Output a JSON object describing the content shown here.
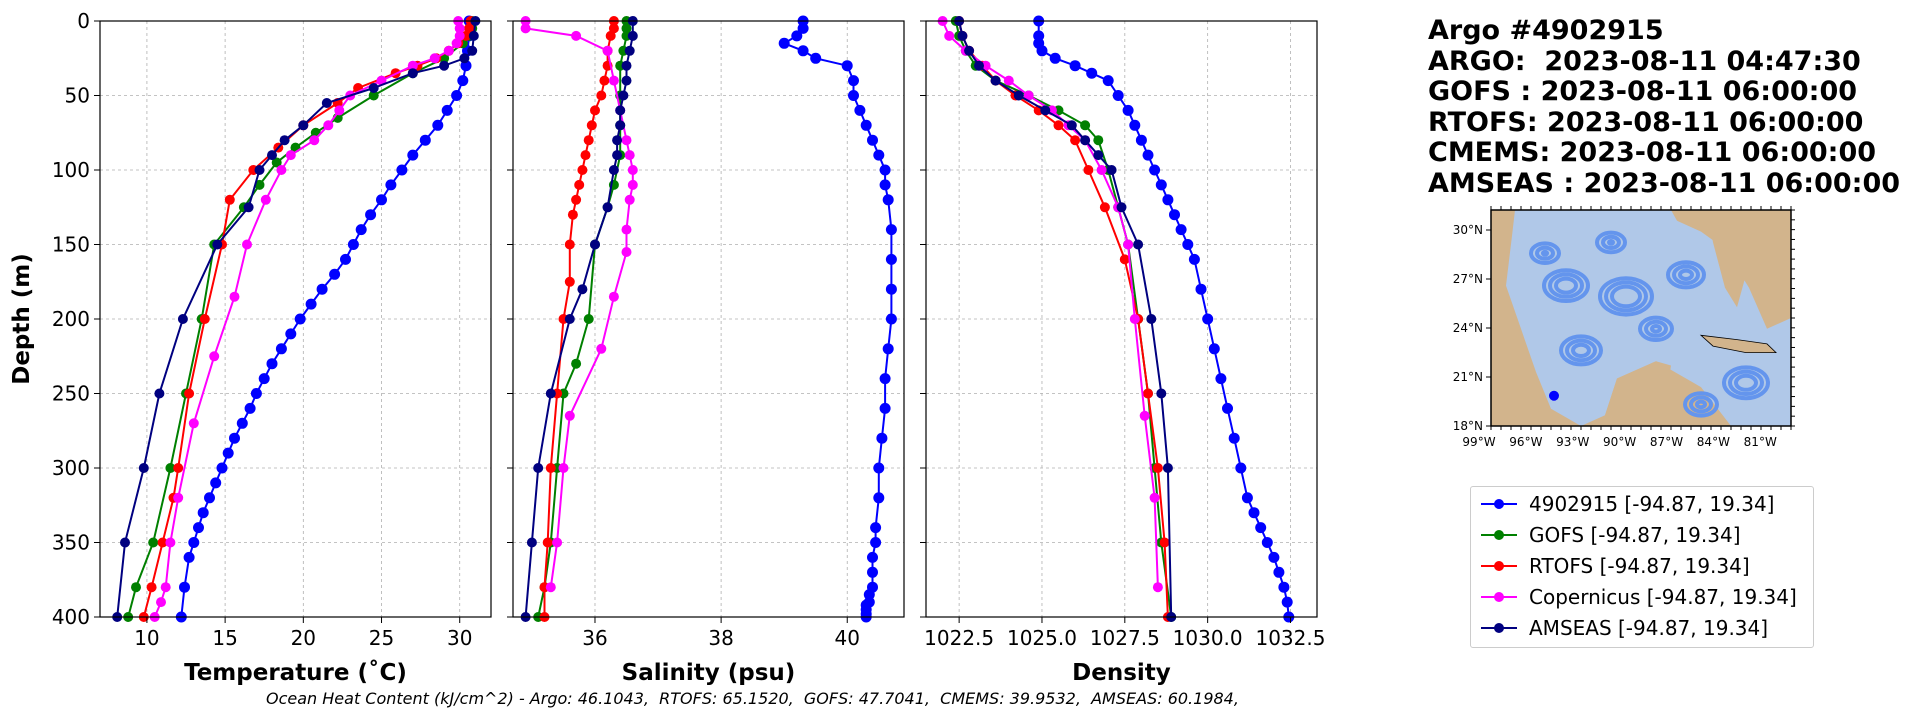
{
  "title_lines": [
    "Argo #4902915",
    "ARGO:  2023-08-11 04:47:30",
    "GOFS : 2023-08-11 06:00:00",
    "RTOFS: 2023-08-11 06:00:00",
    "CMEMS: 2023-08-11 06:00:00",
    "AMSEAS : 2023-08-11 06:00:00"
  ],
  "footer": "Ocean Heat Content (kJ/cm^2) - Argo: 46.1043,  RTOFS: 65.1520,  GOFS: 47.7041,  CMEMS: 39.9532,  AMSEAS: 60.1984,",
  "legend": [
    {
      "label": "4902915 [-94.87, 19.34]",
      "color": "#0000ff"
    },
    {
      "label": "GOFS [-94.87, 19.34]",
      "color": "#008000"
    },
    {
      "label": "RTOFS [-94.87, 19.34]",
      "color": "#ff0000"
    },
    {
      "label": "Copernicus [-94.87, 19.34]",
      "color": "#ff00ff"
    },
    {
      "label": "AMSEAS [-94.87, 19.34]",
      "color": "#000080"
    }
  ],
  "map": {
    "lat_labels": [
      "30°N",
      "27°N",
      "24°N",
      "21°N",
      "18°N"
    ],
    "lon_labels": [
      "99°W",
      "96°W",
      "93°W",
      "90°W",
      "87°W",
      "84°W",
      "81°W"
    ],
    "land_color": "#d2b48c",
    "ocean_color": "#b0c8e8",
    "current_color": "#6495ed"
  },
  "chart_data": [
    {
      "type": "line",
      "ylabel": "Depth (m)",
      "xlabel": "Temperature (˚C)",
      "xlim": [
        7,
        32
      ],
      "ylim": [
        400,
        0
      ],
      "grid": true,
      "xticks": [
        10,
        15,
        20,
        25,
        30
      ],
      "yticks": [
        0,
        50,
        100,
        150,
        200,
        250,
        300,
        350,
        400
      ],
      "series": [
        {
          "name": "4902915",
          "color": "#0000ff",
          "marker_size": 9,
          "continuous": true,
          "x": [
            30.6,
            30.6,
            30.5,
            30.4,
            30.2,
            29.8,
            29.2,
            28.6,
            27.8,
            27.0,
            26.3,
            25.6,
            25.0,
            24.3,
            23.7,
            23.2,
            22.7,
            22.0,
            21.2,
            20.5,
            19.8,
            19.2,
            18.6,
            18.0,
            17.5,
            17.0,
            16.6,
            16.1,
            15.6,
            15.2,
            14.8,
            14.4,
            14.0,
            13.6,
            13.3,
            13.0,
            12.7,
            12.4,
            12.2
          ],
          "y": [
            0,
            10,
            20,
            30,
            40,
            50,
            60,
            70,
            80,
            90,
            100,
            110,
            120,
            130,
            140,
            150,
            160,
            170,
            180,
            190,
            200,
            210,
            220,
            230,
            240,
            250,
            260,
            270,
            280,
            290,
            300,
            310,
            320,
            330,
            340,
            350,
            360,
            380,
            400
          ]
        },
        {
          "name": "GOFS",
          "color": "#008000",
          "x": [
            30.8,
            30.8,
            30.6,
            30.2,
            29.0,
            27.0,
            24.5,
            22.2,
            20.8,
            19.5,
            18.3,
            17.2,
            16.2,
            14.3,
            13.5,
            12.5,
            11.5,
            10.4,
            9.3,
            8.8
          ],
          "y": [
            0,
            5,
            10,
            15,
            25,
            35,
            50,
            65,
            75,
            85,
            95,
            110,
            125,
            150,
            200,
            250,
            300,
            350,
            380,
            400
          ]
        },
        {
          "name": "RTOFS",
          "color": "#ff0000",
          "x": [
            30.7,
            30.6,
            30.4,
            29.9,
            29.3,
            28.5,
            27.3,
            25.9,
            23.5,
            22.2,
            20.0,
            18.4,
            16.8,
            15.3,
            14.8,
            13.7,
            12.7,
            12.0,
            11.7,
            11.0,
            10.3,
            9.8
          ],
          "y": [
            0,
            5,
            10,
            15,
            20,
            25,
            30,
            35,
            45,
            55,
            70,
            85,
            100,
            120,
            150,
            200,
            250,
            300,
            320,
            350,
            380,
            400
          ]
        },
        {
          "name": "Copernicus",
          "color": "#ff00ff",
          "x": [
            29.9,
            30.0,
            30.0,
            29.8,
            29.3,
            28.4,
            27.0,
            25.0,
            23.0,
            22.3,
            21.6,
            20.7,
            19.2,
            18.6,
            17.6,
            16.4,
            15.6,
            14.3,
            13.0,
            12.0,
            11.5,
            11.2,
            10.9,
            10.5
          ],
          "y": [
            0,
            5,
            10,
            15,
            20,
            25,
            30,
            40,
            50,
            60,
            70,
            80,
            90,
            100,
            120,
            150,
            185,
            225,
            270,
            320,
            350,
            380,
            390,
            400
          ]
        },
        {
          "name": "AMSEAS",
          "color": "#000080",
          "x": [
            31.0,
            30.9,
            30.8,
            30.3,
            29.0,
            27.0,
            24.5,
            21.5,
            20.0,
            18.8,
            18.0,
            17.2,
            16.5,
            14.5,
            12.3,
            10.8,
            9.8,
            8.6,
            8.1
          ],
          "y": [
            0,
            10,
            20,
            25,
            30,
            35,
            45,
            55,
            70,
            80,
            90,
            100,
            125,
            150,
            200,
            250,
            300,
            350,
            400
          ]
        }
      ]
    },
    {
      "type": "line",
      "xlabel": "Salinity (psu)",
      "xlim": [
        34.7,
        40.9
      ],
      "ylim": [
        400,
        0
      ],
      "grid": true,
      "xticks": [
        36,
        38,
        40
      ],
      "yticks": [
        0,
        50,
        100,
        150,
        200,
        250,
        300,
        350,
        400
      ],
      "series": [
        {
          "name": "4902915",
          "color": "#0000ff",
          "marker_size": 9,
          "continuous": true,
          "x": [
            39.3,
            39.3,
            39.2,
            39.0,
            39.3,
            39.5,
            40.0,
            40.1,
            40.1,
            40.2,
            40.3,
            40.4,
            40.5,
            40.6,
            40.6,
            40.65,
            40.7,
            40.7,
            40.7,
            40.7,
            40.65,
            40.6,
            40.6,
            40.55,
            40.5,
            40.5,
            40.45,
            40.45,
            40.4,
            40.4,
            40.4,
            40.35,
            40.35,
            40.3,
            40.3,
            40.3,
            40.3
          ],
          "y": [
            0,
            5,
            10,
            15,
            20,
            25,
            30,
            40,
            50,
            60,
            70,
            80,
            90,
            100,
            110,
            120,
            140,
            160,
            180,
            200,
            220,
            240,
            260,
            280,
            300,
            320,
            340,
            350,
            360,
            370,
            380,
            385,
            390,
            392,
            395,
            398,
            400
          ]
        },
        {
          "name": "GOFS",
          "color": "#008000",
          "x": [
            36.5,
            36.5,
            36.5,
            36.45,
            36.4,
            36.4,
            36.4,
            36.4,
            36.3,
            36.2,
            36.0,
            35.9,
            35.7,
            35.5,
            35.4,
            35.3,
            35.2,
            35.1
          ],
          "y": [
            0,
            5,
            10,
            20,
            30,
            50,
            70,
            90,
            110,
            125,
            150,
            200,
            230,
            250,
            300,
            350,
            380,
            400
          ]
        },
        {
          "name": "RTOFS",
          "color": "#ff0000",
          "x": [
            36.3,
            36.3,
            36.25,
            36.2,
            36.2,
            36.15,
            36.1,
            36.0,
            35.95,
            35.9,
            35.85,
            35.8,
            35.75,
            35.7,
            35.65,
            35.6,
            35.6,
            35.5,
            35.4,
            35.3,
            35.25,
            35.2,
            35.2
          ],
          "y": [
            0,
            5,
            10,
            20,
            30,
            40,
            50,
            60,
            70,
            80,
            90,
            100,
            110,
            120,
            130,
            150,
            175,
            200,
            250,
            300,
            350,
            380,
            400
          ]
        },
        {
          "name": "Copernicus",
          "color": "#ff00ff",
          "x": [
            34.9,
            34.9,
            35.7,
            36.2,
            36.3,
            36.4,
            36.5,
            36.55,
            36.6,
            36.6,
            36.55,
            36.5,
            36.5,
            36.3,
            36.1,
            35.6,
            35.5,
            35.4,
            35.3
          ],
          "y": [
            0,
            5,
            10,
            20,
            40,
            60,
            80,
            90,
            100,
            110,
            120,
            140,
            155,
            185,
            220,
            265,
            300,
            350,
            380
          ]
        },
        {
          "name": "AMSEAS",
          "color": "#000080",
          "x": [
            36.6,
            36.6,
            36.55,
            36.5,
            36.5,
            36.45,
            36.4,
            36.4,
            36.35,
            36.35,
            36.3,
            36.2,
            36.0,
            35.8,
            35.6,
            35.3,
            35.1,
            35.0,
            34.9
          ],
          "y": [
            0,
            10,
            20,
            30,
            40,
            50,
            60,
            70,
            80,
            90,
            100,
            125,
            150,
            180,
            200,
            250,
            300,
            350,
            400
          ]
        }
      ]
    },
    {
      "type": "line",
      "xlabel": "Density",
      "xlim": [
        1021.5,
        1033.3
      ],
      "ylim": [
        400,
        0
      ],
      "grid": true,
      "xticks": [
        1022.5,
        1025.0,
        1027.5,
        1030.0,
        1032.5
      ],
      "xtick_labels": [
        "1022.5",
        "1025.0",
        "1027.5",
        "1030.0",
        "1032.5"
      ],
      "yticks": [
        0,
        50,
        100,
        150,
        200,
        250,
        300,
        350,
        400
      ],
      "series": [
        {
          "name": "4902915",
          "color": "#0000ff",
          "marker_size": 9,
          "continuous": true,
          "x": [
            1024.9,
            1024.9,
            1024.9,
            1025.0,
            1025.4,
            1026.0,
            1026.5,
            1027.0,
            1027.3,
            1027.6,
            1027.8,
            1028.0,
            1028.2,
            1028.4,
            1028.6,
            1028.8,
            1029.0,
            1029.2,
            1029.4,
            1029.6,
            1029.8,
            1030.0,
            1030.2,
            1030.4,
            1030.6,
            1030.8,
            1031.0,
            1031.2,
            1031.4,
            1031.6,
            1031.8,
            1032.0,
            1032.15,
            1032.3,
            1032.4,
            1032.45
          ],
          "y": [
            0,
            10,
            15,
            20,
            25,
            30,
            35,
            40,
            50,
            60,
            70,
            80,
            90,
            100,
            110,
            120,
            130,
            140,
            150,
            160,
            180,
            200,
            220,
            240,
            260,
            280,
            300,
            320,
            330,
            340,
            350,
            360,
            370,
            380,
            390,
            400
          ]
        },
        {
          "name": "GOFS",
          "color": "#008000",
          "x": [
            1022.4,
            1022.5,
            1022.7,
            1023.0,
            1023.6,
            1024.6,
            1025.5,
            1026.3,
            1026.7,
            1027.0,
            1027.3,
            1027.6,
            1027.9,
            1028.2,
            1028.4,
            1028.6,
            1028.9
          ],
          "y": [
            0,
            10,
            20,
            30,
            40,
            50,
            60,
            70,
            80,
            100,
            125,
            150,
            200,
            250,
            300,
            350,
            400
          ]
        },
        {
          "name": "RTOFS",
          "color": "#ff0000",
          "x": [
            1022.5,
            1022.6,
            1022.8,
            1023.2,
            1023.6,
            1024.2,
            1024.9,
            1025.5,
            1026.0,
            1026.4,
            1026.9,
            1027.5,
            1027.9,
            1028.2,
            1028.5,
            1028.7,
            1028.8
          ],
          "y": [
            0,
            10,
            20,
            30,
            40,
            50,
            60,
            70,
            80,
            100,
            125,
            160,
            200,
            250,
            300,
            350,
            400
          ]
        },
        {
          "name": "Copernicus",
          "color": "#ff00ff",
          "x": [
            1022.0,
            1022.2,
            1022.7,
            1023.3,
            1024.0,
            1024.6,
            1025.3,
            1025.8,
            1026.3,
            1026.8,
            1027.3,
            1027.6,
            1027.8,
            1028.1,
            1028.4,
            1028.5
          ],
          "y": [
            0,
            10,
            20,
            30,
            40,
            50,
            60,
            70,
            80,
            100,
            125,
            150,
            200,
            265,
            320,
            380
          ]
        },
        {
          "name": "AMSEAS",
          "color": "#000080",
          "x": [
            1022.5,
            1022.6,
            1022.8,
            1023.1,
            1023.6,
            1024.3,
            1025.1,
            1025.9,
            1026.3,
            1026.7,
            1027.1,
            1027.4,
            1027.9,
            1028.3,
            1028.6,
            1028.8,
            1028.9
          ],
          "y": [
            0,
            10,
            20,
            30,
            40,
            50,
            60,
            70,
            80,
            90,
            100,
            125,
            150,
            200,
            250,
            300,
            400
          ]
        }
      ]
    }
  ]
}
